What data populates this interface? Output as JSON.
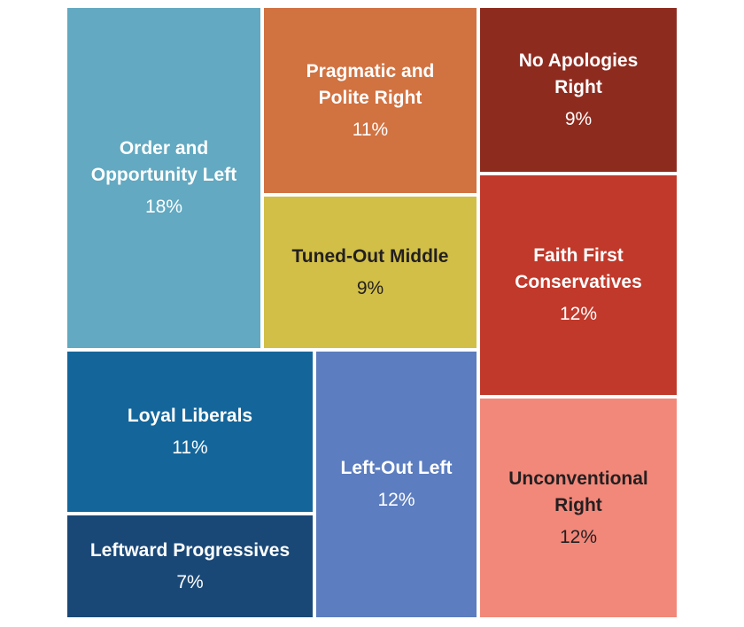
{
  "chart_data": {
    "type": "treemap",
    "title": "",
    "segments": [
      {
        "name": "Order and\nOpportunity Left",
        "value": 18,
        "label": "18%",
        "color": "#62a9c1",
        "text_color": "#ffffff"
      },
      {
        "name": "Pragmatic and\nPolite Right",
        "value": 11,
        "label": "11%",
        "color": "#d17241",
        "text_color": "#ffffff"
      },
      {
        "name": "No Apologies\nRight",
        "value": 9,
        "label": "9%",
        "color": "#8e2b1f",
        "text_color": "#ffffff"
      },
      {
        "name": "Tuned-Out Middle",
        "value": 9,
        "label": "9%",
        "color": "#d1bf48",
        "text_color": "#231f20"
      },
      {
        "name": "Faith First\nConservatives",
        "value": 12,
        "label": "12%",
        "color": "#c0392b",
        "text_color": "#ffffff"
      },
      {
        "name": "Loyal Liberals",
        "value": 11,
        "label": "11%",
        "color": "#14669a",
        "text_color": "#ffffff"
      },
      {
        "name": "Leftward Progressives",
        "value": 7,
        "label": "7%",
        "color": "#1a4876",
        "text_color": "#ffffff"
      },
      {
        "name": "Left-Out Left",
        "value": 12,
        "label": "12%",
        "color": "#5c7dbf",
        "text_color": "#ffffff"
      },
      {
        "name": "Unconventional\nRight",
        "value": 12,
        "label": "12%",
        "color": "#f2887a",
        "text_color": "#231f20"
      }
    ]
  }
}
